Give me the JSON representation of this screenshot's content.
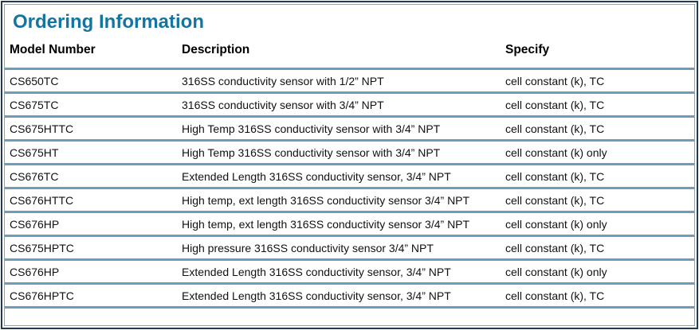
{
  "panel": {
    "title": "Ordering Information"
  },
  "table": {
    "columns": [
      {
        "label": "Model Number"
      },
      {
        "label": "Description"
      },
      {
        "label": "Specify"
      }
    ],
    "rows": [
      {
        "model": "CS650TC",
        "description": "316SS conductivity sensor with 1/2” NPT",
        "specify": "cell constant (k), TC"
      },
      {
        "model": "CS675TC",
        "description": "316SS conductivity sensor with 3/4” NPT",
        "specify": "cell constant (k), TC"
      },
      {
        "model": "CS675HTTC",
        "description": "High Temp 316SS conductivity sensor with 3/4” NPT",
        "specify": "cell constant (k), TC"
      },
      {
        "model": "CS675HT",
        "description": "High Temp 316SS conductivity sensor with 3/4” NPT",
        "specify": "cell constant (k) only"
      },
      {
        "model": "CS676TC",
        "description": "Extended Length 316SS conductivity sensor, 3/4” NPT",
        "specify": "cell constant (k), TC"
      },
      {
        "model": "CS676HTTC",
        "description": "High temp, ext length 316SS conductivity sensor 3/4” NPT",
        "specify": "cell constant (k), TC"
      },
      {
        "model": "CS676HP",
        "description": "High temp, ext length 316SS conductivity sensor 3/4” NPT",
        "specify": "cell constant (k) only"
      },
      {
        "model": "CS675HPTC",
        "description": "High pressure 316SS conductivity sensor 3/4” NPT",
        "specify": "cell constant (k), TC"
      },
      {
        "model": "CS676HP",
        "description": "Extended Length 316SS conductivity sensor, 3/4” NPT",
        "specify": "cell constant (k) only"
      },
      {
        "model": "CS676HPTC",
        "description": "Extended Length 316SS conductivity sensor, 3/4” NPT",
        "specify": "cell constant (k), TC"
      }
    ]
  },
  "colors": {
    "title_text": "#16759e",
    "frame_outer": "#1e3c55",
    "frame_inner_line": "#7fa7c3",
    "row_separator": "#5f91b5",
    "body_text": "#111111"
  }
}
